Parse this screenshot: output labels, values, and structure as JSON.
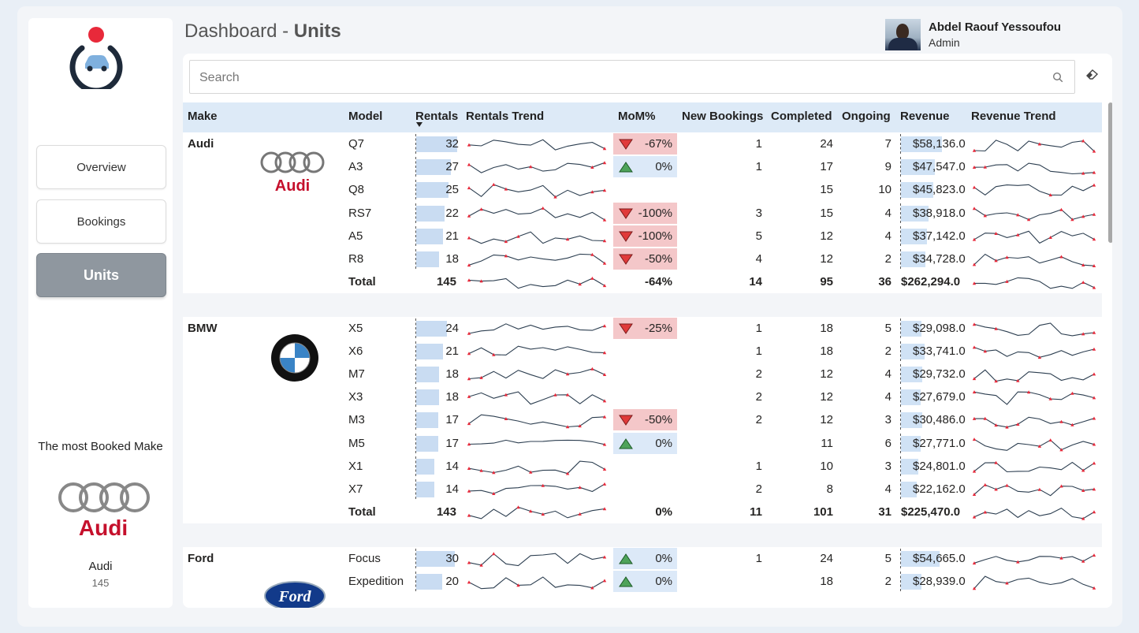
{
  "header": {
    "title_prefix": "Dashboard",
    "title_sep": " - ",
    "title_main": "Units"
  },
  "user": {
    "name": "Abdel Raouf Yessoufou",
    "role": "Admin"
  },
  "nav": [
    {
      "label": "Overview",
      "active": false
    },
    {
      "label": "Bookings",
      "active": false
    },
    {
      "label": "Units",
      "active": true
    }
  ],
  "most_booked": {
    "title": "The most Booked Make",
    "make": "Audi",
    "count": "145"
  },
  "search": {
    "placeholder": "Search"
  },
  "columns": {
    "make": "Make",
    "model": "Model",
    "rentals": "Rentals",
    "rentals_trend": "Rentals Trend",
    "mom": "MoM%",
    "new_bookings": "New Bookings",
    "completed": "Completed",
    "ongoing": "Ongoing",
    "revenue": "Revenue",
    "revenue_trend": "Revenue Trend"
  },
  "colors": {
    "negative_bg": "#f4c7c9",
    "positive_bg": "#dce9f8",
    "bar": "#c9dcf2",
    "marker": "#e8293a",
    "header_bg": "#ddeaf7"
  },
  "groups": [
    {
      "make": "Audi",
      "logo": "audi-logo",
      "rows": [
        {
          "model": "Q7",
          "rentals": "32",
          "mom": "-67%",
          "mom_dir": "down",
          "new": "1",
          "completed": "24",
          "ongoing": "7",
          "revenue": "$58,136.0",
          "rev_pct": 1.0,
          "rent_pct": 1.0
        },
        {
          "model": "A3",
          "rentals": "27",
          "mom": "0%",
          "mom_dir": "up",
          "new": "1",
          "completed": "17",
          "ongoing": "9",
          "revenue": "$47,547.0",
          "rev_pct": 0.82,
          "rent_pct": 0.84
        },
        {
          "model": "Q8",
          "rentals": "25",
          "mom": "",
          "mom_dir": "",
          "new": "",
          "completed": "15",
          "ongoing": "10",
          "revenue": "$45,823.0",
          "rev_pct": 0.79,
          "rent_pct": 0.78
        },
        {
          "model": "RS7",
          "rentals": "22",
          "mom": "-100%",
          "mom_dir": "down",
          "new": "3",
          "completed": "15",
          "ongoing": "4",
          "revenue": "$38,918.0",
          "rev_pct": 0.67,
          "rent_pct": 0.69
        },
        {
          "model": "A5",
          "rentals": "21",
          "mom": "-100%",
          "mom_dir": "down",
          "new": "5",
          "completed": "12",
          "ongoing": "4",
          "revenue": "$37,142.0",
          "rev_pct": 0.64,
          "rent_pct": 0.66
        },
        {
          "model": "R8",
          "rentals": "18",
          "mom": "-50%",
          "mom_dir": "down",
          "new": "4",
          "completed": "12",
          "ongoing": "2",
          "revenue": "$34,728.0",
          "rev_pct": 0.6,
          "rent_pct": 0.56
        }
      ],
      "total": {
        "label": "Total",
        "rentals": "145",
        "mom": "-64%",
        "new": "14",
        "completed": "95",
        "ongoing": "36",
        "revenue": "$262,294.0"
      }
    },
    {
      "make": "BMW",
      "logo": "bmw-logo",
      "rows": [
        {
          "model": "X5",
          "rentals": "24",
          "mom": "-25%",
          "mom_dir": "down",
          "new": "1",
          "completed": "18",
          "ongoing": "5",
          "revenue": "$29,098.0",
          "rev_pct": 0.5,
          "rent_pct": 0.75
        },
        {
          "model": "X6",
          "rentals": "21",
          "mom": "",
          "mom_dir": "",
          "new": "1",
          "completed": "18",
          "ongoing": "2",
          "revenue": "$33,741.0",
          "rev_pct": 0.58,
          "rent_pct": 0.66
        },
        {
          "model": "M7",
          "rentals": "18",
          "mom": "",
          "mom_dir": "",
          "new": "2",
          "completed": "12",
          "ongoing": "4",
          "revenue": "$29,732.0",
          "rev_pct": 0.51,
          "rent_pct": 0.56
        },
        {
          "model": "X3",
          "rentals": "18",
          "mom": "",
          "mom_dir": "",
          "new": "2",
          "completed": "12",
          "ongoing": "4",
          "revenue": "$27,679.0",
          "rev_pct": 0.48,
          "rent_pct": 0.56
        },
        {
          "model": "M3",
          "rentals": "17",
          "mom": "-50%",
          "mom_dir": "down",
          "new": "2",
          "completed": "12",
          "ongoing": "3",
          "revenue": "$30,486.0",
          "rev_pct": 0.52,
          "rent_pct": 0.53
        },
        {
          "model": "M5",
          "rentals": "17",
          "mom": "0%",
          "mom_dir": "up",
          "new": "",
          "completed": "11",
          "ongoing": "6",
          "revenue": "$27,771.0",
          "rev_pct": 0.48,
          "rent_pct": 0.53
        },
        {
          "model": "X1",
          "rentals": "14",
          "mom": "",
          "mom_dir": "",
          "new": "1",
          "completed": "10",
          "ongoing": "3",
          "revenue": "$24,801.0",
          "rev_pct": 0.43,
          "rent_pct": 0.44
        },
        {
          "model": "X7",
          "rentals": "14",
          "mom": "",
          "mom_dir": "",
          "new": "2",
          "completed": "8",
          "ongoing": "4",
          "revenue": "$22,162.0",
          "rev_pct": 0.38,
          "rent_pct": 0.44
        }
      ],
      "total": {
        "label": "Total",
        "rentals": "143",
        "mom": "0%",
        "new": "11",
        "completed": "101",
        "ongoing": "31",
        "revenue": "$225,470.0"
      }
    },
    {
      "make": "Ford",
      "logo": "ford-logo",
      "rows": [
        {
          "model": "Focus",
          "rentals": "30",
          "mom": "0%",
          "mom_dir": "up",
          "new": "1",
          "completed": "24",
          "ongoing": "5",
          "revenue": "$54,665.0",
          "rev_pct": 0.94,
          "rent_pct": 0.94
        },
        {
          "model": "Expedition",
          "rentals": "20",
          "mom": "0%",
          "mom_dir": "up",
          "new": "",
          "completed": "18",
          "ongoing": "2",
          "revenue": "$28,939.0",
          "rev_pct": 0.5,
          "rent_pct": 0.63
        }
      ],
      "total": null
    }
  ]
}
